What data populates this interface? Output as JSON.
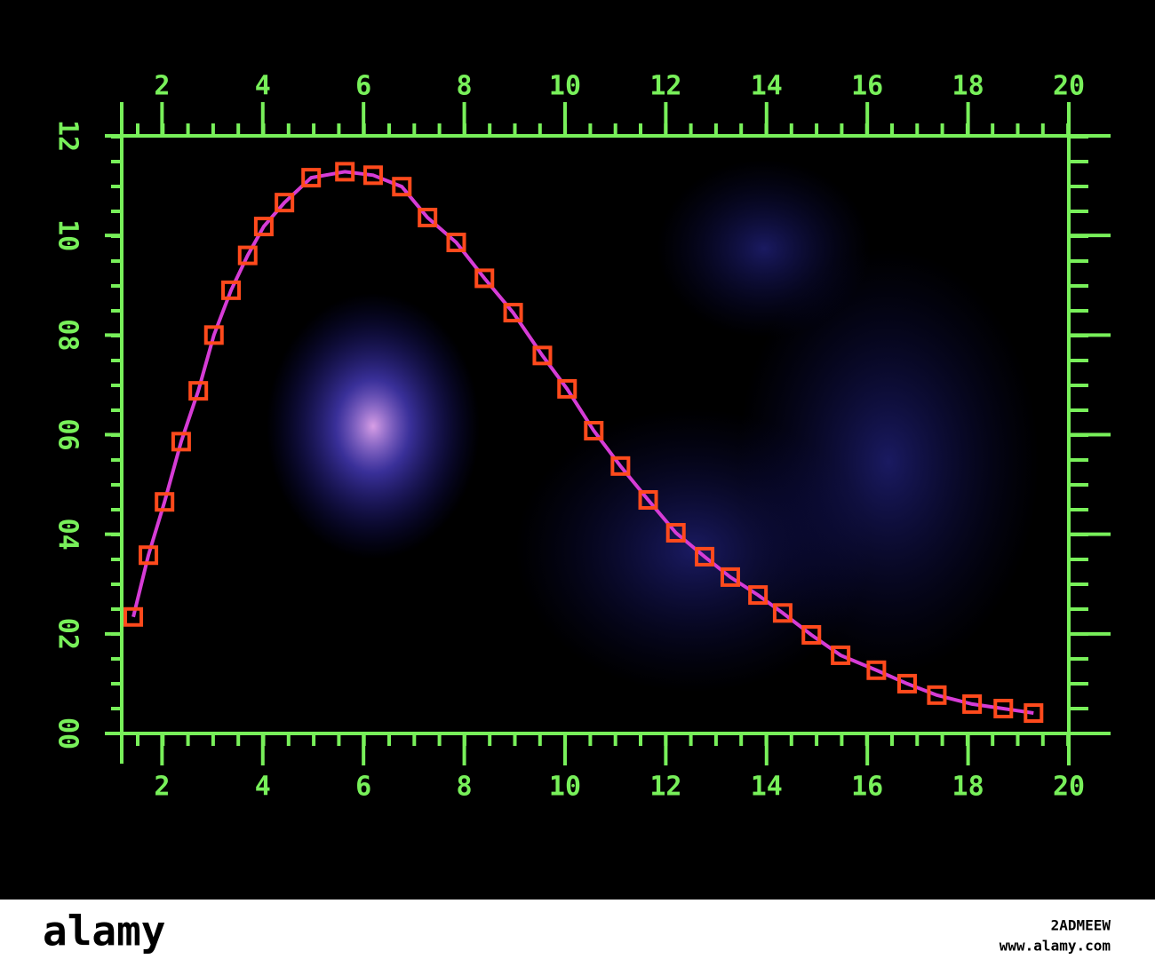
{
  "chart_data": {
    "type": "line",
    "x": [
      1.43,
      1.73,
      2.05,
      2.38,
      2.72,
      3.03,
      3.37,
      3.7,
      4.02,
      4.43,
      4.96,
      5.63,
      6.19,
      6.76,
      7.27,
      7.84,
      8.4,
      8.97,
      9.55,
      10.04,
      10.57,
      11.1,
      11.65,
      12.2,
      12.77,
      13.28,
      13.83,
      14.32,
      14.89,
      15.47,
      16.18,
      16.79,
      17.38,
      18.08,
      18.7,
      19.3
    ],
    "series": [
      {
        "color": "#d63cd6",
        "marker_color": "#ff4a1c",
        "values": [
          2.34,
          3.58,
          4.65,
          5.86,
          6.88,
          8.0,
          8.9,
          9.6,
          10.18,
          10.66,
          11.16,
          11.28,
          11.21,
          10.98,
          10.36,
          9.86,
          9.14,
          8.45,
          7.59,
          6.92,
          6.08,
          5.37,
          4.69,
          4.03,
          3.55,
          3.14,
          2.78,
          2.42,
          1.98,
          1.57,
          1.27,
          1.0,
          0.77,
          0.59,
          0.5,
          0.41
        ]
      }
    ],
    "xlim": [
      1.2,
      20
    ],
    "xticks": [
      2,
      4,
      6,
      8,
      10,
      12,
      14,
      16,
      18,
      20
    ],
    "ylim": [
      0,
      12
    ],
    "yticks": [
      {
        "value": 0,
        "label": "00"
      },
      {
        "value": 2,
        "label": "02"
      },
      {
        "value": 4,
        "label": "04"
      },
      {
        "value": 6,
        "label": "06"
      },
      {
        "value": 8,
        "label": "08"
      },
      10,
      12
    ],
    "axis_color": "#78f05a",
    "grid": false
  },
  "watermark": {
    "logo": "alamy",
    "code": "2ADMEEW",
    "url": "www.alamy.com"
  }
}
